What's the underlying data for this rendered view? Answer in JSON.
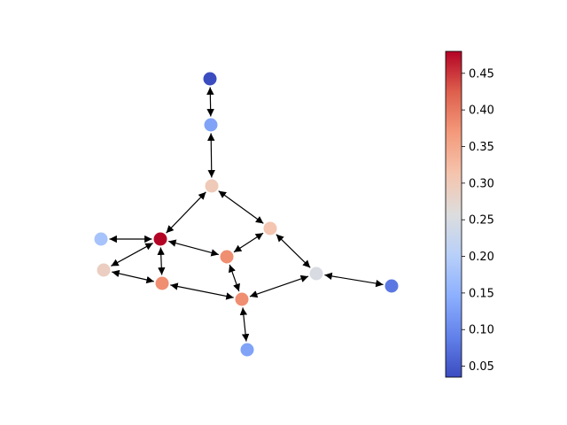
{
  "graph": {
    "nodes": [
      {
        "id": "n1",
        "value": 0.03
      },
      {
        "id": "n2",
        "value": 0.13
      },
      {
        "id": "n3",
        "value": 0.3
      },
      {
        "id": "n4",
        "value": 0.31
      },
      {
        "id": "n5",
        "value": 0.48
      },
      {
        "id": "n6",
        "value": 0.18
      },
      {
        "id": "n7",
        "value": 0.29
      },
      {
        "id": "n8",
        "value": 0.38
      },
      {
        "id": "n9",
        "value": 0.38
      },
      {
        "id": "n10",
        "value": 0.38
      },
      {
        "id": "n11",
        "value": 0.25
      },
      {
        "id": "n12",
        "value": 0.08
      },
      {
        "id": "n13",
        "value": 0.13
      }
    ],
    "edges": [
      [
        "n1",
        "n2"
      ],
      [
        "n2",
        "n3"
      ],
      [
        "n3",
        "n5"
      ],
      [
        "n3",
        "n4"
      ],
      [
        "n6",
        "n5"
      ],
      [
        "n5",
        "n7"
      ],
      [
        "n5",
        "n9"
      ],
      [
        "n5",
        "n8"
      ],
      [
        "n7",
        "n9"
      ],
      [
        "n8",
        "n4"
      ],
      [
        "n8",
        "n10"
      ],
      [
        "n9",
        "n10"
      ],
      [
        "n4",
        "n11"
      ],
      [
        "n10",
        "n11"
      ],
      [
        "n11",
        "n12"
      ],
      [
        "n10",
        "n13"
      ]
    ],
    "directed_both_ways": true
  },
  "colorbar": {
    "colormap": "coolwarm",
    "min": 0.035,
    "max": 0.48,
    "ticks": [
      "0.05",
      "0.10",
      "0.15",
      "0.20",
      "0.25",
      "0.30",
      "0.35",
      "0.40",
      "0.45"
    ]
  }
}
